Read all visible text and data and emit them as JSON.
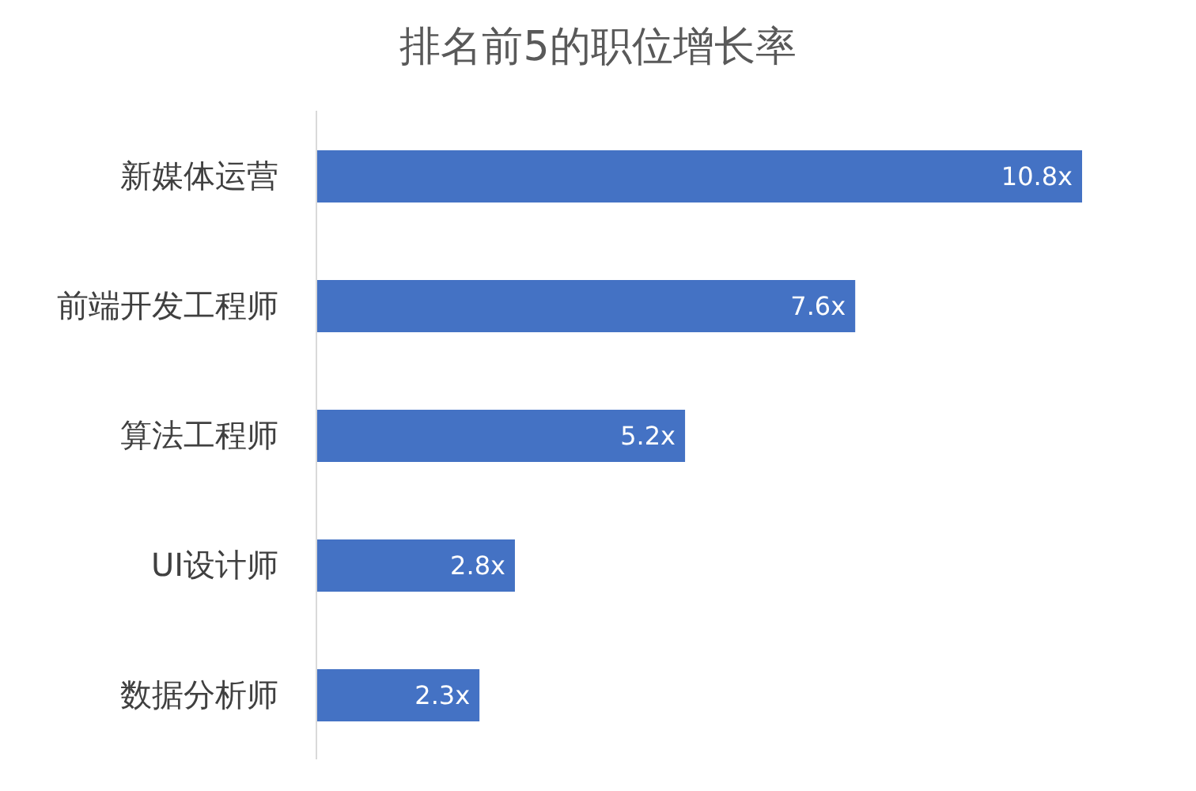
{
  "chart_data": {
    "type": "bar",
    "title": "排名前5的职位增长率",
    "orientation": "horizontal",
    "categories": [
      "新媒体运营",
      "前端开发工程师",
      "算法工程师",
      "UI设计师",
      "数据分析师"
    ],
    "values": [
      10.8,
      7.6,
      5.2,
      2.8,
      2.3
    ],
    "value_labels": [
      "10.8x",
      "7.6x",
      "5.2x",
      "2.8x",
      "2.3x"
    ],
    "color": "#4472c4"
  }
}
